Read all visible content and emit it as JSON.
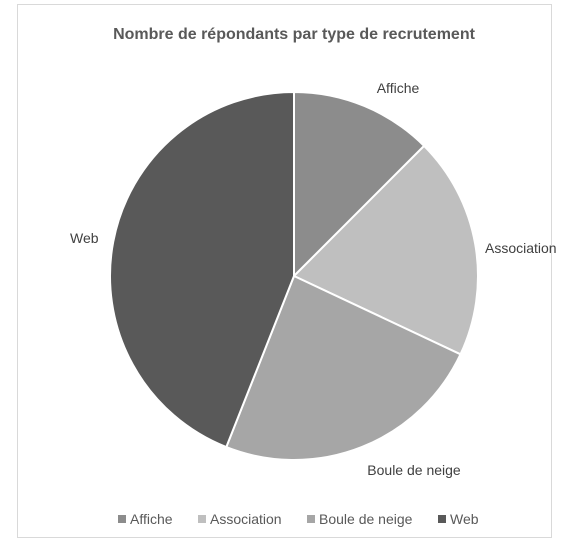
{
  "chart_data": {
    "type": "pie",
    "title": "Nombre de répondants par type de recrutement",
    "categories": [
      "Affiche",
      "Association",
      "Boule de neige",
      "Web"
    ],
    "values": [
      12.5,
      19.5,
      24,
      44
    ],
    "colors": [
      "#8c8c8c",
      "#bfbfbf",
      "#a6a6a6",
      "#595959"
    ],
    "legend_position": "bottom",
    "show_category_labels": true
  }
}
